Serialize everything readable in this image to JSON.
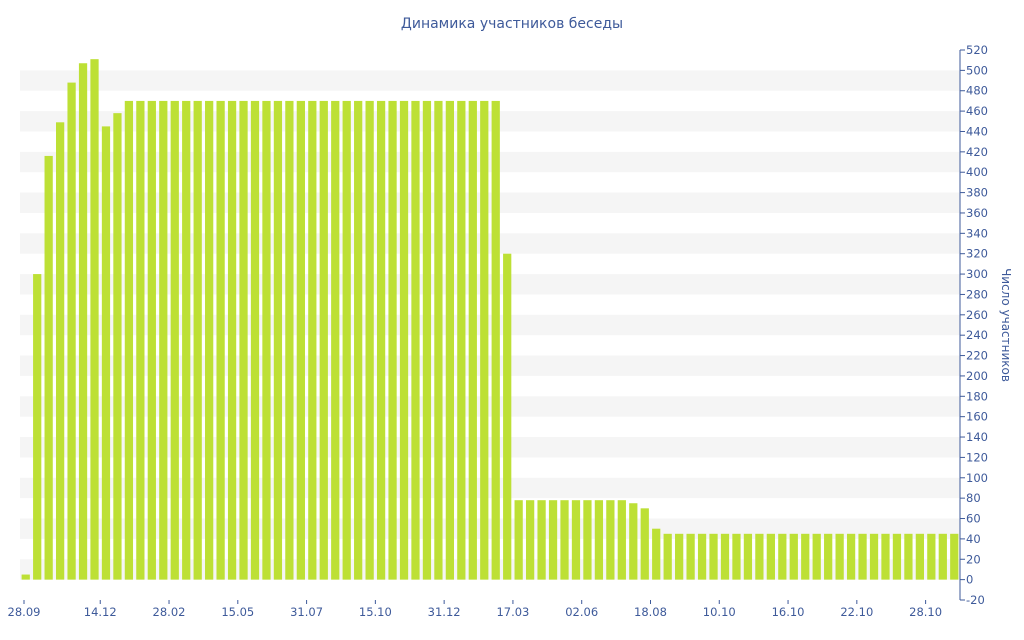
{
  "chart_data": {
    "type": "bar",
    "title": "Динамика участников беседы",
    "ylabel": "Число участников",
    "xlabel": "",
    "ylim": [
      -20,
      520
    ],
    "y_ticks": [
      -20,
      0,
      20,
      40,
      60,
      80,
      100,
      120,
      140,
      160,
      180,
      200,
      220,
      240,
      260,
      280,
      300,
      320,
      340,
      360,
      380,
      400,
      420,
      440,
      460,
      480,
      500,
      520
    ],
    "x_tick_labels": [
      {
        "label": "28.09",
        "index": 0
      },
      {
        "label": "14.12",
        "index": 6.5
      },
      {
        "label": "28.02",
        "index": 12.5
      },
      {
        "label": "15.05",
        "index": 18.5
      },
      {
        "label": "31.07",
        "index": 24.5
      },
      {
        "label": "15.10",
        "index": 30.5
      },
      {
        "label": "31.12",
        "index": 36.5
      },
      {
        "label": "17.03",
        "index": 42.5
      },
      {
        "label": "02.06",
        "index": 48.5
      },
      {
        "label": "18.08",
        "index": 54.5
      },
      {
        "label": "10.10",
        "index": 60.5
      },
      {
        "label": "16.10",
        "index": 66.5
      },
      {
        "label": "22.10",
        "index": 72.5
      },
      {
        "label": "28.10",
        "index": 78.5
      }
    ],
    "y_axis_side": "right",
    "grid": "alternating horizontal bands",
    "bar_color": "#bde035",
    "values": [
      5,
      300,
      416,
      449,
      488,
      507,
      511,
      445,
      458,
      470,
      470,
      470,
      470,
      470,
      470,
      470,
      470,
      470,
      470,
      470,
      470,
      470,
      470,
      470,
      470,
      470,
      470,
      470,
      470,
      470,
      470,
      470,
      470,
      470,
      470,
      470,
      470,
      470,
      470,
      470,
      470,
      470,
      320,
      78,
      78,
      78,
      78,
      78,
      78,
      78,
      78,
      78,
      78,
      75,
      70,
      50,
      45,
      45,
      45,
      45,
      45,
      45,
      45,
      45,
      45,
      45,
      45,
      45,
      45,
      45,
      45,
      45,
      45,
      45,
      45,
      45,
      45,
      45,
      45,
      45,
      45,
      45
    ]
  }
}
